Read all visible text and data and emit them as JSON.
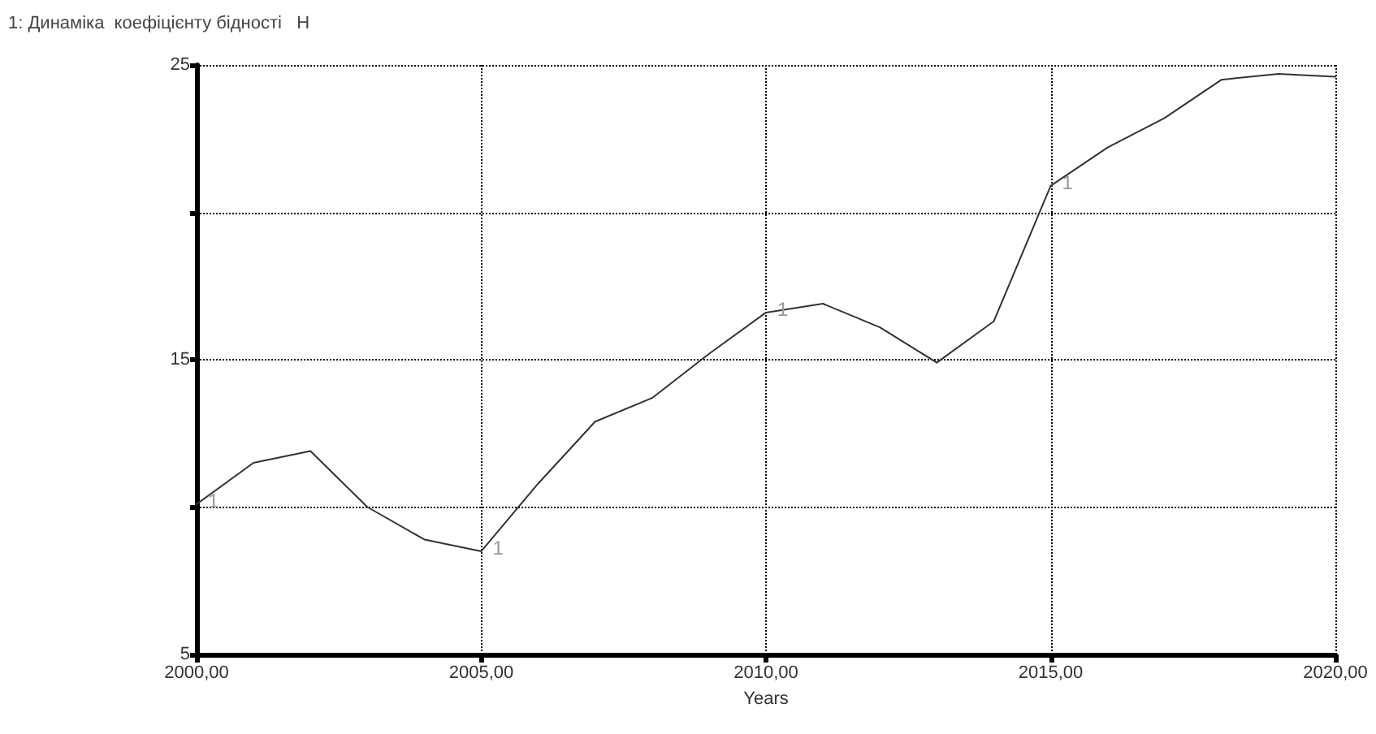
{
  "chart_data": {
    "type": "line",
    "title": "1: Динаміка  коефіцієнту бідності   Н",
    "xlabel": "Years",
    "x": [
      2000,
      2001,
      2002,
      2003,
      2004,
      2005,
      2006,
      2007,
      2008,
      2009,
      2010,
      2011,
      2012,
      2013,
      2014,
      2015,
      2016,
      2017,
      2018,
      2019,
      2020
    ],
    "series": [
      {
        "name": "1",
        "color": "#333333",
        "values": [
          10.1,
          11.5,
          11.9,
          10.0,
          8.9,
          8.5,
          10.8,
          12.9,
          13.7,
          15.2,
          16.6,
          16.9,
          16.1,
          14.9,
          16.3,
          20.9,
          22.2,
          23.2,
          24.5,
          24.7,
          24.6
        ]
      }
    ],
    "xlim": [
      2000,
      2020
    ],
    "xticks": [
      {
        "value": 2000,
        "label": "2000,00"
      },
      {
        "value": 2005,
        "label": "2005,00"
      },
      {
        "value": 2010,
        "label": "2010,00"
      },
      {
        "value": 2015,
        "label": "2015,00"
      },
      {
        "value": 2020,
        "label": "2020,00"
      }
    ],
    "ylim": [
      5,
      25
    ],
    "yticks": [
      5,
      {
        "value": 10,
        "label": null
      },
      15,
      {
        "value": 20,
        "label": null
      },
      25
    ],
    "grid": true,
    "legend": false,
    "marker": "none",
    "line_style": "solid"
  }
}
